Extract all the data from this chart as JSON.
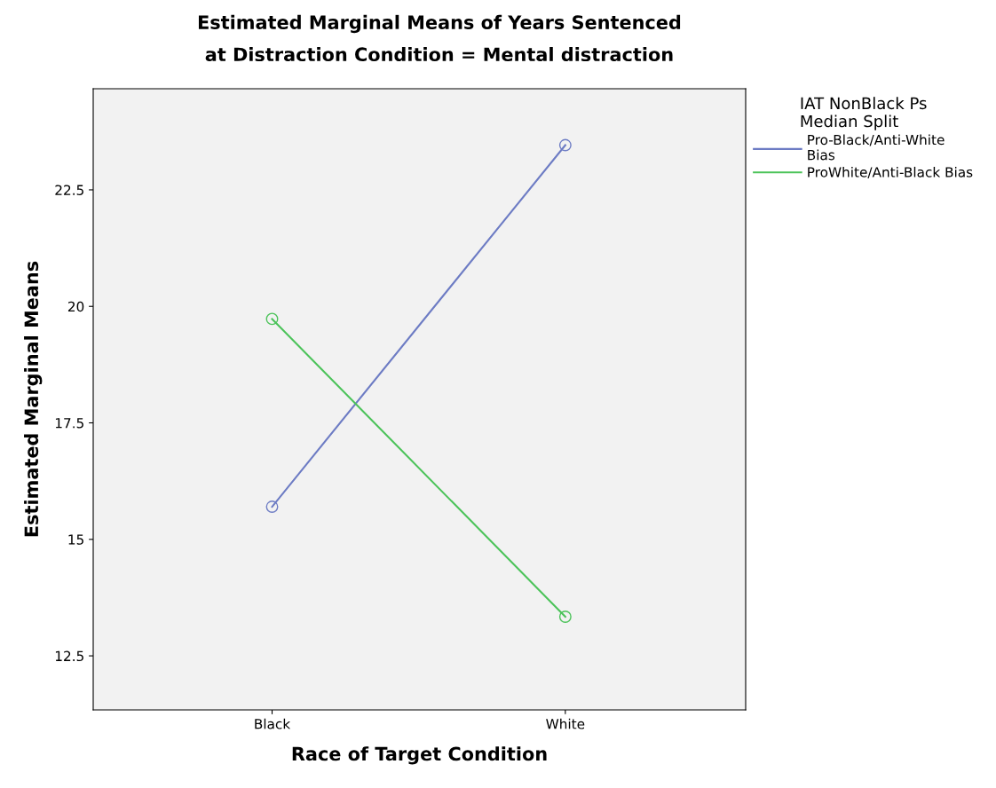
{
  "chart_data": {
    "type": "line",
    "title": "Estimated Marginal Means of Years Sentenced\nat Distraction Condition = Mental distraction",
    "xlabel": "Race of Target Condition",
    "ylabel": "Estimated Marginal Means",
    "legend_title": "IAT NonBlack Ps\nMedian Split",
    "categories": [
      "Black",
      "White"
    ],
    "series": [
      {
        "name": "Pro-Black/Anti-White\nBias",
        "color": "#6d7cc4",
        "values": [
          15.7,
          23.46
        ]
      },
      {
        "name": "ProWhite/Anti-Black Bias",
        "color": "#4cc35a",
        "values": [
          19.73,
          13.34
        ]
      }
    ],
    "ylim": [
      11.34,
      24.67
    ],
    "yticks": [
      12.5,
      15,
      17.5,
      20,
      22.5
    ],
    "grid": false,
    "legend": "top right",
    "marker": "circle"
  }
}
